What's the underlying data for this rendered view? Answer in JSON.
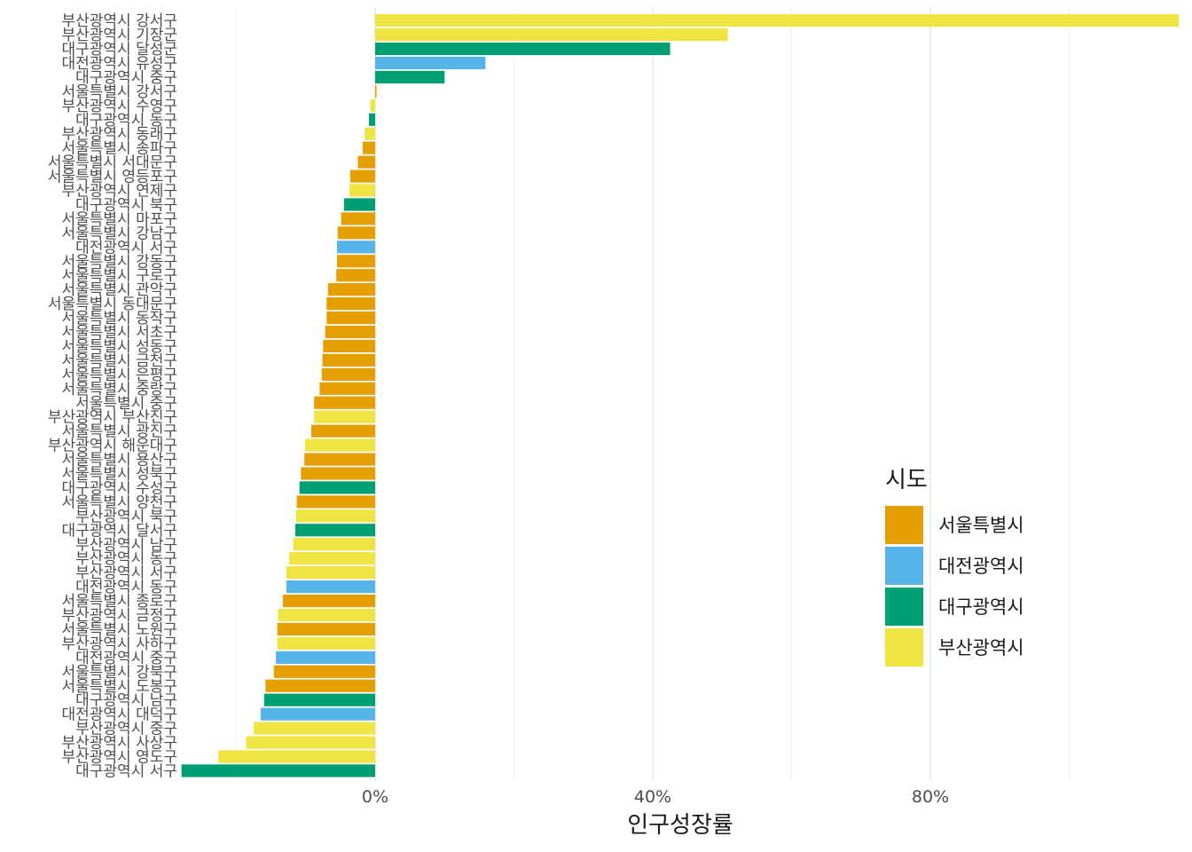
{
  "chart_data": {
    "type": "bar",
    "orientation": "horizontal",
    "xlabel": "인구성장률",
    "ylabel": "",
    "xlim": [
      -0.275,
      1.16
    ],
    "xticks": [
      {
        "value": 0,
        "label": "0%"
      },
      {
        "value": 0.4,
        "label": "40%"
      },
      {
        "value": 0.8,
        "label": "80%"
      }
    ],
    "minor_gridlines": [
      -0.2,
      0.2,
      0.6,
      1.0
    ],
    "grid": true,
    "legend": {
      "title": "시도",
      "position": "right",
      "items": [
        {
          "name": "서울특별시",
          "color": "#E69F00"
        },
        {
          "name": "대전광역시",
          "color": "#56B4E9"
        },
        {
          "name": "대구광역시",
          "color": "#009E73"
        },
        {
          "name": "부산광역시",
          "color": "#F0E442"
        }
      ]
    },
    "bars": [
      {
        "label": "부산광역시 강서구",
        "sido": "부산광역시",
        "value": 1.16
      },
      {
        "label": "부산광역시 기장군",
        "sido": "부산광역시",
        "value": 0.508
      },
      {
        "label": "대구광역시 달성군",
        "sido": "대구광역시",
        "value": 0.425
      },
      {
        "label": "대전광역시 유성구",
        "sido": "대전광역시",
        "value": 0.159
      },
      {
        "label": "대구광역시 중구",
        "sido": "대구광역시",
        "value": 0.1
      },
      {
        "label": "서울특별시 강서구",
        "sido": "서울특별시",
        "value": 0.002
      },
      {
        "label": "부산광역시 수영구",
        "sido": "부산광역시",
        "value": -0.007
      },
      {
        "label": "대구광역시 동구",
        "sido": "대구광역시",
        "value": -0.009
      },
      {
        "label": "부산광역시 동래구",
        "sido": "부산광역시",
        "value": -0.015
      },
      {
        "label": "서울특별시 송파구",
        "sido": "서울특별시",
        "value": -0.018
      },
      {
        "label": "서울특별시 서대문구",
        "sido": "서울특별시",
        "value": -0.025
      },
      {
        "label": "서울특별시 영등포구",
        "sido": "서울특별시",
        "value": -0.036
      },
      {
        "label": "부산광역시 연제구",
        "sido": "부산광역시",
        "value": -0.037
      },
      {
        "label": "대구광역시 북구",
        "sido": "대구광역시",
        "value": -0.045
      },
      {
        "label": "서울특별시 마포구",
        "sido": "서울특별시",
        "value": -0.049
      },
      {
        "label": "서울특별시 강남구",
        "sido": "서울특별시",
        "value": -0.054
      },
      {
        "label": "대전광역시 서구",
        "sido": "대전광역시",
        "value": -0.055
      },
      {
        "label": "서울특별시 강동구",
        "sido": "서울특별시",
        "value": -0.055
      },
      {
        "label": "서울특별시 구로구",
        "sido": "서울특별시",
        "value": -0.056
      },
      {
        "label": "서울특별시 관악구",
        "sido": "서울특별시",
        "value": -0.068
      },
      {
        "label": "서울특별시 동대문구",
        "sido": "서울특별시",
        "value": -0.07
      },
      {
        "label": "서울특별시 동작구",
        "sido": "서울특별시",
        "value": -0.07
      },
      {
        "label": "서울특별시 서초구",
        "sido": "서울특별시",
        "value": -0.072
      },
      {
        "label": "서울특별시 성동구",
        "sido": "서울특별시",
        "value": -0.075
      },
      {
        "label": "서울특별시 금천구",
        "sido": "서울특별시",
        "value": -0.076
      },
      {
        "label": "서울특별시 은평구",
        "sido": "서울특별시",
        "value": -0.077
      },
      {
        "label": "서울특별시 중랑구",
        "sido": "서울특별시",
        "value": -0.08
      },
      {
        "label": "서울특별시 중구",
        "sido": "서울특별시",
        "value": -0.088
      },
      {
        "label": "부산광역시 부산진구",
        "sido": "부산광역시",
        "value": -0.088
      },
      {
        "label": "서울특별시 광진구",
        "sido": "서울특별시",
        "value": -0.092
      },
      {
        "label": "부산광역시 해운대구",
        "sido": "부산광역시",
        "value": -0.101
      },
      {
        "label": "서울특별시 용산구",
        "sido": "서울특별시",
        "value": -0.102
      },
      {
        "label": "서울특별시 성북구",
        "sido": "서울특별시",
        "value": -0.107
      },
      {
        "label": "대구광역시 수성구",
        "sido": "대구광역시",
        "value": -0.109
      },
      {
        "label": "서울특별시 양천구",
        "sido": "서울특별시",
        "value": -0.113
      },
      {
        "label": "부산광역시 북구",
        "sido": "부산광역시",
        "value": -0.114
      },
      {
        "label": "대구광역시 달서구",
        "sido": "대구광역시",
        "value": -0.115
      },
      {
        "label": "부산광역시 남구",
        "sido": "부산광역시",
        "value": -0.118
      },
      {
        "label": "부산광역시 동구",
        "sido": "부산광역시",
        "value": -0.124
      },
      {
        "label": "부산광역시 서구",
        "sido": "부산광역시",
        "value": -0.128
      },
      {
        "label": "대전광역시 동구",
        "sido": "대전광역시",
        "value": -0.128
      },
      {
        "label": "서울특별시 종로구",
        "sido": "서울특별시",
        "value": -0.133
      },
      {
        "label": "부산광역시 금정구",
        "sido": "부산광역시",
        "value": -0.14
      },
      {
        "label": "서울특별시 노원구",
        "sido": "서울특별시",
        "value": -0.141
      },
      {
        "label": "부산광역시 사하구",
        "sido": "부산광역시",
        "value": -0.141
      },
      {
        "label": "대전광역시 중구",
        "sido": "대전광역시",
        "value": -0.143
      },
      {
        "label": "서울특별시 강북구",
        "sido": "서울특별시",
        "value": -0.146
      },
      {
        "label": "서울특별시 도봉구",
        "sido": "서울특별시",
        "value": -0.158
      },
      {
        "label": "대구광역시 남구",
        "sido": "대구광역시",
        "value": -0.16
      },
      {
        "label": "대전광역시 대덕구",
        "sido": "대전광역시",
        "value": -0.165
      },
      {
        "label": "부산광역시 중구",
        "sido": "부산광역시",
        "value": -0.175
      },
      {
        "label": "부산광역시 사상구",
        "sido": "부산광역시",
        "value": -0.186
      },
      {
        "label": "부산광역시 영도구",
        "sido": "부산광역시",
        "value": -0.226
      },
      {
        "label": "대구광역시 서구",
        "sido": "대구광역시",
        "value": -0.279
      }
    ]
  }
}
